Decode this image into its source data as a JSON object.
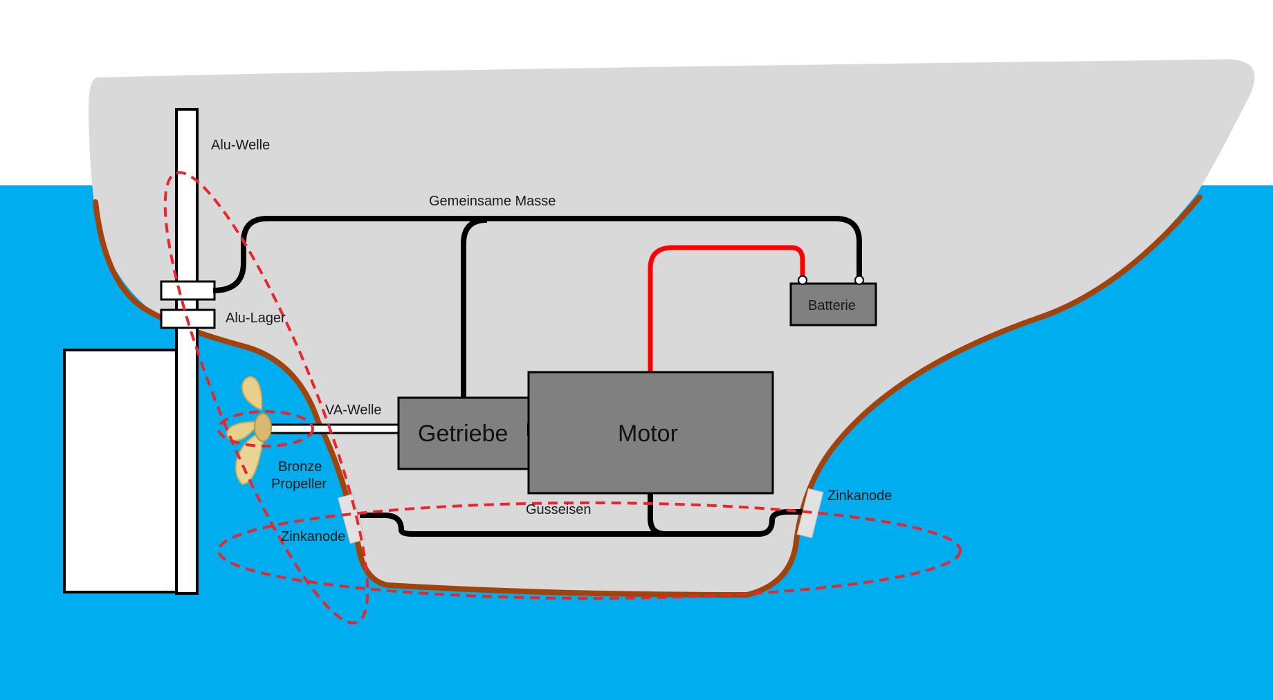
{
  "labels": {
    "alu_welle": "Alu-Welle",
    "gemeinsame_masse": "Gemeinsame Masse",
    "alu_lager": "Alu-Lager",
    "batterie": "Batterie",
    "va_welle": "VA-Welle",
    "getriebe": "Getriebe",
    "motor": "Motor",
    "bronze": "Bronze",
    "propeller": "Propeller",
    "gusseisen": "Gusseisen",
    "zinkanode_left": "Zinkanode",
    "zinkanode_right": "Zinkanode"
  },
  "colors": {
    "water": "#00AEEF",
    "hull_interior": "#D9D9D9",
    "hull_skin": "#A0440C",
    "component": "#808080",
    "ground_wire": "#000000",
    "positive_wire": "#FF0000",
    "current_loop": "#E8262B",
    "propeller": "#E8CF8A",
    "anode": "#E2E2E2"
  }
}
